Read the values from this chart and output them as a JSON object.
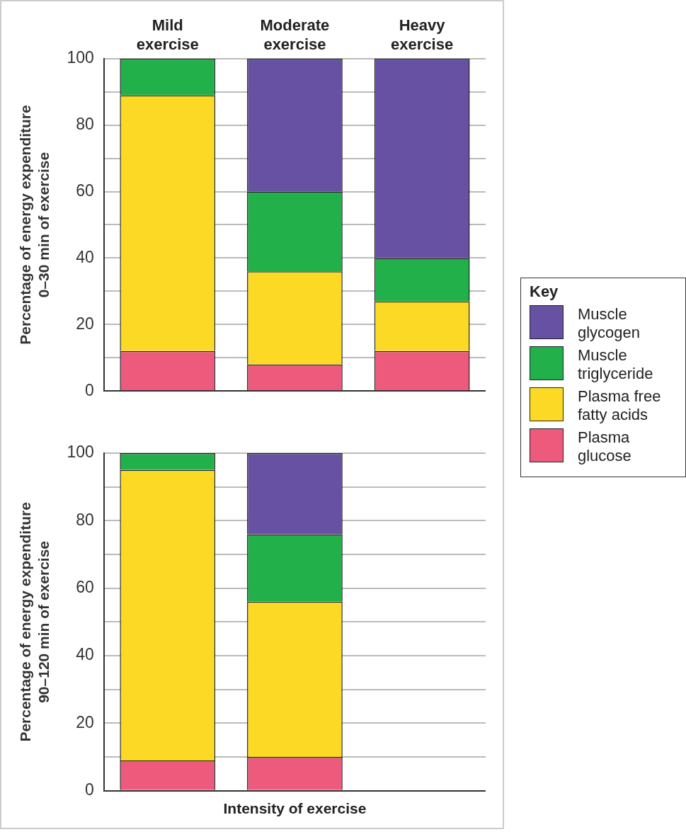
{
  "chart_data": [
    {
      "type": "bar",
      "stacked": true,
      "categories": [
        "Mild exercise",
        "Moderate exercise",
        "Heavy exercise"
      ],
      "ylabel": "Percentage of energy expenditure\n0–30 min of exercise",
      "ylim": [
        0,
        100
      ],
      "yticks": [
        0,
        {
          "value": 10,
          "label": null
        },
        20,
        {
          "value": 30,
          "label": null
        },
        40,
        {
          "value": 50,
          "label": null
        },
        60,
        {
          "value": 70,
          "label": null
        },
        80,
        {
          "value": 90,
          "label": null
        },
        100
      ],
      "grid": "y",
      "legend": "right",
      "legend_title": "Key",
      "series": [
        {
          "name": "Plasma glucose",
          "color": "#ee5a7b",
          "values": [
            12,
            8,
            12
          ]
        },
        {
          "name": "Plasma free fatty acids",
          "color": "#fcd925",
          "values": [
            77,
            28,
            15
          ]
        },
        {
          "name": "Muscle triglyceride",
          "color": "#22b04b",
          "values": [
            11,
            24,
            13
          ]
        },
        {
          "name": "Muscle glycogen",
          "color": "#6651a3",
          "values": [
            0,
            40,
            60
          ]
        }
      ]
    },
    {
      "type": "bar",
      "stacked": true,
      "categories": [
        null,
        null,
        null
      ],
      "xlabel": "Intensity of exercise",
      "ylabel": "Percentage of energy expenditure\n90–120 min of exercise",
      "ylim": [
        0,
        100
      ],
      "yticks": [
        0,
        {
          "value": 10,
          "label": null
        },
        20,
        {
          "value": 30,
          "label": null
        },
        40,
        {
          "value": 50,
          "label": null
        },
        60,
        {
          "value": 70,
          "label": null
        },
        80,
        {
          "value": 90,
          "label": null
        },
        100
      ],
      "grid": "y",
      "tick_labels": "y",
      "series": [
        {
          "color": "#ee5a7b",
          "values": [
            9,
            10,
            null
          ]
        },
        {
          "color": "#fcd925",
          "values": [
            86,
            46,
            null
          ]
        },
        {
          "color": "#22b04b",
          "values": [
            5,
            20,
            null
          ]
        },
        {
          "color": "#6651a3",
          "values": [
            0,
            24,
            null
          ]
        }
      ]
    }
  ]
}
